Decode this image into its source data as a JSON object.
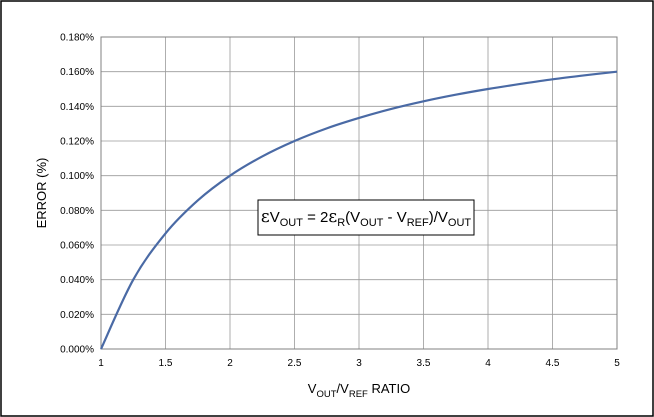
{
  "chart_data": {
    "type": "line",
    "xlabel": {
      "main": "V",
      "sub1": "OUT",
      "mid": "/V",
      "sub2": "REF",
      "tail": " RATIO"
    },
    "ylabel": "ERROR (%)",
    "xlim": [
      1,
      5
    ],
    "ylim": [
      0,
      0.18
    ],
    "x_ticks": [
      1,
      1.5,
      2,
      2.5,
      3,
      3.5,
      4,
      4.5,
      5
    ],
    "x_tick_labels": [
      "1",
      "1.5",
      "2",
      "2.5",
      "3",
      "3.5",
      "4",
      "4.5",
      "5"
    ],
    "y_ticks": [
      0,
      0.02,
      0.04,
      0.06,
      0.08,
      0.1,
      0.12,
      0.14,
      0.16,
      0.18
    ],
    "y_tick_labels": [
      "0.000%",
      "0.020%",
      "0.040%",
      "0.060%",
      "0.080%",
      "0.100%",
      "0.120%",
      "0.140%",
      "0.160%",
      "0.180%"
    ],
    "grid": true,
    "series": [
      {
        "color": "#4a6aa5",
        "x": [
          1,
          1.25,
          1.5,
          1.75,
          2,
          2.25,
          2.5,
          2.75,
          3,
          3.25,
          3.5,
          3.75,
          4,
          4.25,
          4.5,
          4.75,
          5
        ],
        "values": [
          0,
          0.04,
          0.0667,
          0.0857,
          0.1,
          0.1111,
          0.12,
          0.1273,
          0.1333,
          0.1385,
          0.1429,
          0.1467,
          0.15,
          0.1529,
          0.1556,
          0.1579,
          0.16
        ]
      }
    ],
    "annotation": {
      "eps1": "ε",
      "v1": "V",
      "sub1": "OUT",
      "eq": " = 2",
      "eps2": "ε",
      "sub_r": "R",
      "paren_open": "(V",
      "sub2": "OUT",
      "minus": " - V",
      "sub3": "REF",
      "close_slash": ")/V",
      "sub4": "OUT"
    }
  }
}
